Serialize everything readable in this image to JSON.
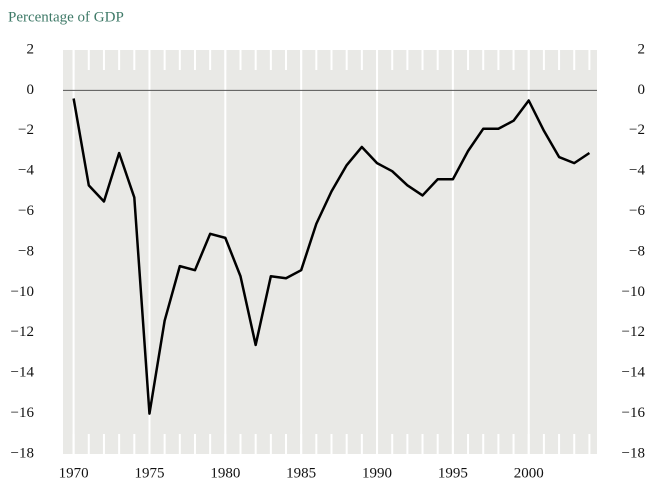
{
  "chart_data": {
    "type": "line",
    "title": "Percentage of GDP",
    "x": [
      1970,
      1971,
      1972,
      1973,
      1974,
      1975,
      1976,
      1977,
      1978,
      1979,
      1980,
      1981,
      1982,
      1983,
      1984,
      1985,
      1986,
      1987,
      1988,
      1989,
      1990,
      1991,
      1992,
      1993,
      1994,
      1995,
      1996,
      1997,
      1998,
      1999,
      2000,
      2001,
      2002,
      2003,
      2004
    ],
    "series": [
      {
        "name": null,
        "color": "#000000",
        "values": [
          -0.4,
          -4.7,
          -5.5,
          -3.1,
          -5.3,
          -16.0,
          -11.4,
          -8.7,
          -8.9,
          -7.1,
          -7.3,
          -9.2,
          -12.6,
          -9.2,
          -9.3,
          -8.9,
          -6.6,
          -5.0,
          -3.7,
          -2.8,
          -3.6,
          -4.0,
          -4.7,
          -5.2,
          -4.4,
          -4.4,
          -3.0,
          -1.9,
          -1.9,
          -1.5,
          -0.5,
          -2.0,
          -3.3,
          -3.6,
          -3.1
        ]
      }
    ],
    "xlim": [
      1969.3,
      2004.5
    ],
    "xticks": [
      1970,
      1975,
      1980,
      1985,
      1990,
      1995,
      2000
    ],
    "ylim": [
      -18,
      2
    ],
    "yticks": [
      {
        "value": -18,
        "label": "−18"
      },
      {
        "value": -16,
        "label": "−16"
      },
      {
        "value": -14,
        "label": "−14"
      },
      {
        "value": -12,
        "label": "−12"
      },
      {
        "value": -10,
        "label": "−10"
      },
      {
        "value": -8,
        "label": "−8"
      },
      {
        "value": -6,
        "label": "−6"
      },
      {
        "value": -4,
        "label": "−4"
      },
      {
        "value": -2,
        "label": "−2"
      },
      0,
      2
    ],
    "background": "#e9e9e6"
  }
}
